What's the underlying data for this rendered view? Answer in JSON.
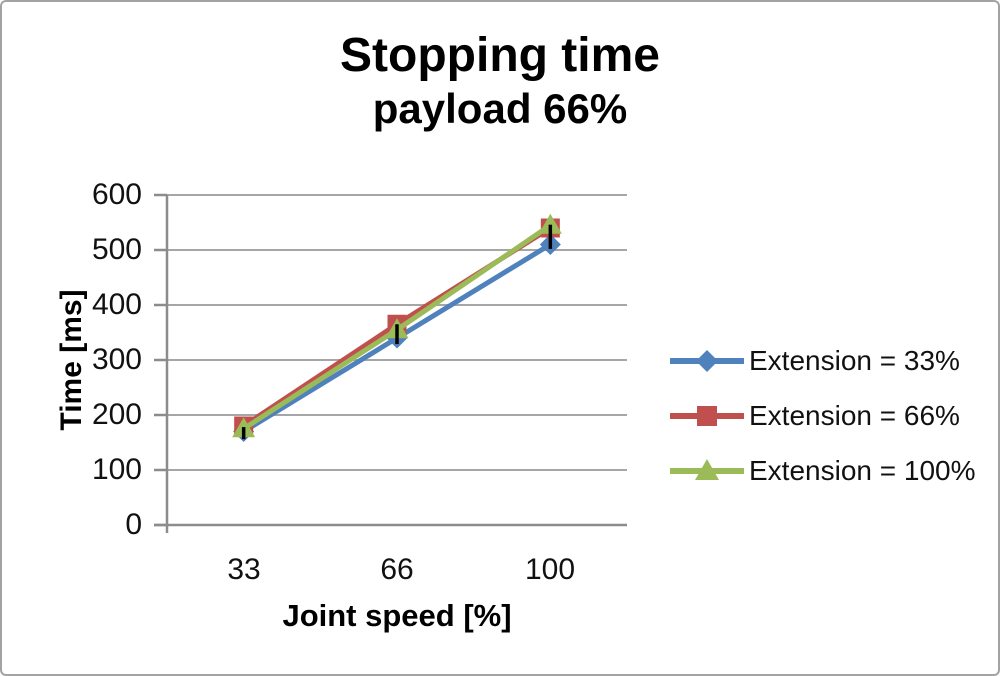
{
  "chart_data": {
    "type": "line",
    "title": "Stopping time",
    "subtitle": "payload 66%",
    "categories": [
      "33",
      "66",
      "100"
    ],
    "series": [
      {
        "name": "Extension = 33%",
        "marker": "diamond",
        "color": "#4F81BD",
        "values": [
          170,
          340,
          510
        ]
      },
      {
        "name": "Extension = 66%",
        "marker": "square",
        "color": "#C0504D",
        "values": [
          180,
          365,
          540
        ]
      },
      {
        "name": "Extension = 100%",
        "marker": "triangle",
        "color": "#9BBB59",
        "values": [
          175,
          355,
          545
        ]
      }
    ],
    "error_bars": {
      "centers": [
        167,
        347,
        524
      ],
      "half_ranges": [
        11,
        18,
        22
      ],
      "color": "#000000"
    },
    "xlabel": "Joint speed [%]",
    "ylabel": "Time [ms]",
    "ylim": [
      0,
      600
    ],
    "yticks": [
      600,
      500,
      400,
      300,
      200,
      100,
      0
    ],
    "grid": true,
    "legend_position": "right"
  },
  "colors": {
    "gridline": "#a6a6a6",
    "axis": "#8c8c8c",
    "text": "#000000",
    "frame_border": "#a3a3a3",
    "background": "#ffffff"
  }
}
